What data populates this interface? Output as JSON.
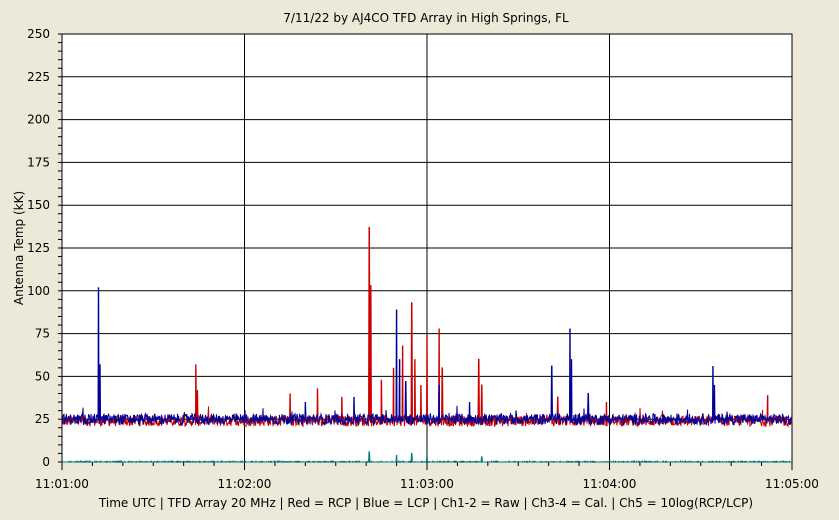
{
  "chart_data": {
    "type": "line",
    "title": "7/11/22  by  AJ4CO TFD Array  in  High Springs, FL",
    "ylabel": "Antenna Temp  (kK)",
    "xlabel": "Time UTC | TFD Array 20 MHz | Red = RCP | Blue = LCP | Ch1-2 = Raw | Ch3-4 = Cal. | Ch5 = 10log(RCP/LCP)",
    "ylim": [
      0,
      250
    ],
    "xlim": [
      "11:01:00",
      "11:05:00"
    ],
    "y_ticks": [
      "0",
      "25",
      "50",
      "75",
      "100",
      "125",
      "150",
      "175",
      "200",
      "225",
      "250"
    ],
    "x_ticks": [
      "11:01:00",
      "11:02:00",
      "11:03:00",
      "11:04:00",
      "11:05:00"
    ],
    "grid": true,
    "series": [
      {
        "name": "Red = RCP",
        "color": "#cc0000",
        "baseline": 24,
        "spikes": [
          {
            "t": "11:01:44",
            "v": 57
          },
          {
            "t": "11:01:44.5",
            "v": 42
          },
          {
            "t": "11:02:15",
            "v": 40
          },
          {
            "t": "11:02:24",
            "v": 43
          },
          {
            "t": "11:02:32",
            "v": 38
          },
          {
            "t": "11:02:41",
            "v": 137
          },
          {
            "t": "11:02:41.5",
            "v": 103
          },
          {
            "t": "11:02:45",
            "v": 48
          },
          {
            "t": "11:02:49",
            "v": 55
          },
          {
            "t": "11:02:52",
            "v": 68
          },
          {
            "t": "11:02:55",
            "v": 93
          },
          {
            "t": "11:02:56",
            "v": 60
          },
          {
            "t": "11:02:58",
            "v": 45
          },
          {
            "t": "11:03:00",
            "v": 74
          },
          {
            "t": "11:03:04",
            "v": 78
          },
          {
            "t": "11:03:05",
            "v": 55
          },
          {
            "t": "11:03:17",
            "v": 60
          },
          {
            "t": "11:03:18",
            "v": 45
          },
          {
            "t": "11:03:43",
            "v": 38
          },
          {
            "t": "11:03:59",
            "v": 35
          },
          {
            "t": "11:04:52",
            "v": 39
          }
        ]
      },
      {
        "name": "Blue = LCP",
        "color": "#000099",
        "baseline": 25,
        "spikes": [
          {
            "t": "11:01:12",
            "v": 102
          },
          {
            "t": "11:01:12.5",
            "v": 57
          },
          {
            "t": "11:02:20",
            "v": 35
          },
          {
            "t": "11:02:36",
            "v": 38
          },
          {
            "t": "11:02:50",
            "v": 89
          },
          {
            "t": "11:02:51",
            "v": 60
          },
          {
            "t": "11:02:53",
            "v": 47
          },
          {
            "t": "11:03:04",
            "v": 45
          },
          {
            "t": "11:03:14",
            "v": 35
          },
          {
            "t": "11:03:41",
            "v": 56
          },
          {
            "t": "11:03:47",
            "v": 78
          },
          {
            "t": "11:03:47.5",
            "v": 60
          },
          {
            "t": "11:03:53",
            "v": 40
          },
          {
            "t": "11:04:34",
            "v": 56
          },
          {
            "t": "11:04:34.5",
            "v": 45
          }
        ]
      },
      {
        "name": "Ch5 = 10log(RCP/LCP)",
        "color": "#008080",
        "baseline": 0,
        "spikes": [
          {
            "t": "11:02:41",
            "v": 6
          },
          {
            "t": "11:02:50",
            "v": 4
          },
          {
            "t": "11:02:55",
            "v": 5
          },
          {
            "t": "11:03:00",
            "v": 4
          },
          {
            "t": "11:03:18",
            "v": 3
          }
        ]
      }
    ]
  }
}
